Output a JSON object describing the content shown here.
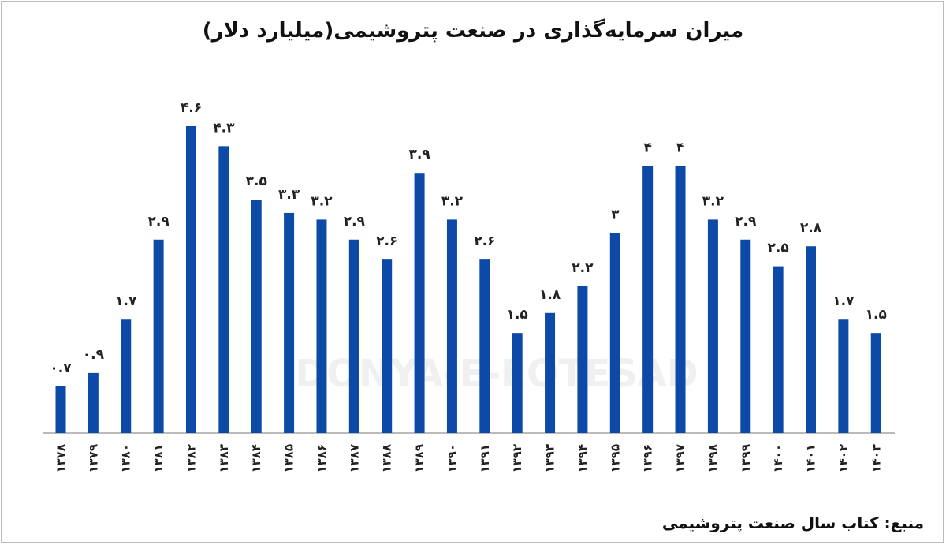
{
  "title": "میران سرمایه‌گذاری در صنعت پتروشیمی(میلیارد دلار)",
  "source": "منبع: کتاب سال صنعت پتروشیمی",
  "watermark": "DONYA-E-EQTESAD",
  "colors": {
    "bar": "#0d4aa8",
    "axis": "#bbbbbb"
  },
  "chart_data": {
    "type": "bar",
    "title": "میران سرمایه‌گذاری در صنعت پتروشیمی(میلیارد دلار)",
    "xlabel": "",
    "ylabel": "",
    "ylim": [
      0,
      4.6
    ],
    "grid": false,
    "categories": [
      "۱۳۷۸",
      "۱۳۷۹",
      "۱۳۸۰",
      "۱۳۸۱",
      "۱۳۸۲",
      "۱۳۸۳",
      "۱۳۸۴",
      "۱۳۸۵",
      "۱۳۸۶",
      "۱۳۸۷",
      "۱۳۸۸",
      "۱۳۸۹",
      "۱۳۹۰",
      "۱۳۹۱",
      "۱۳۹۲",
      "۱۳۹۳",
      "۱۳۹۴",
      "۱۳۹۵",
      "۱۳۹۶",
      "۱۳۹۷",
      "۱۳۹۸",
      "۱۳۹۹",
      "۱۴۰۰",
      "۱۴۰۱",
      "۱۴۰۲",
      "۱۴۰۳"
    ],
    "values": [
      0.7,
      0.9,
      1.7,
      2.9,
      4.6,
      4.3,
      3.5,
      3.3,
      3.2,
      2.9,
      2.6,
      3.9,
      3.2,
      2.6,
      1.5,
      1.8,
      2.2,
      3,
      4,
      4,
      3.2,
      2.9,
      2.5,
      2.8,
      1.7,
      1.5
    ],
    "value_labels": [
      "۰.۷",
      "۰.۹",
      "۱.۷",
      "۲.۹",
      "۴.۶",
      "۴.۳",
      "۳.۵",
      "۳.۳",
      "۳.۲",
      "۲.۹",
      "۲.۶",
      "۳.۹",
      "۳.۲",
      "۲.۶",
      "۱.۵",
      "۱.۸",
      "۲.۲",
      "۳",
      "۴",
      "۴",
      "۳.۲",
      "۲.۹",
      "۲.۵",
      "۲.۸",
      "۱.۷",
      "۱.۵"
    ]
  }
}
